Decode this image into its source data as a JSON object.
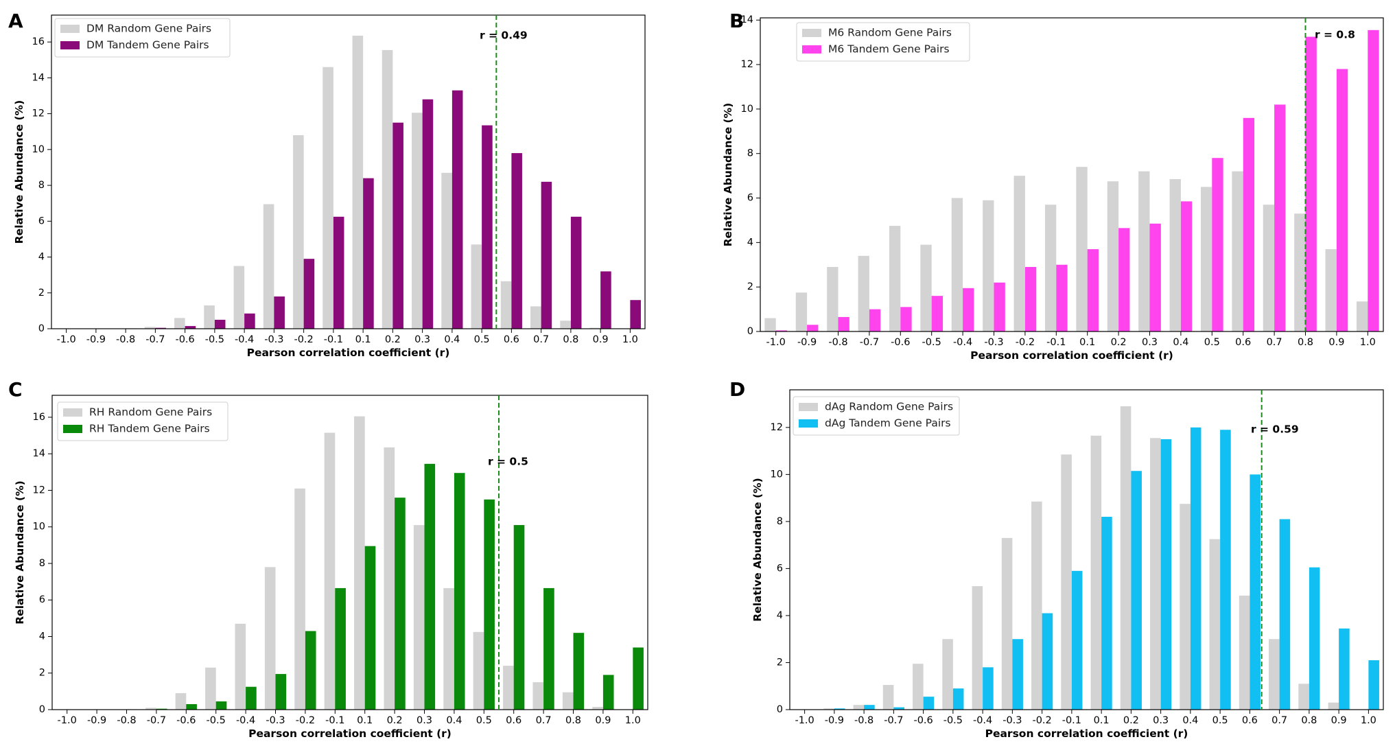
{
  "chart_data": [
    {
      "panel": "A",
      "type": "bar",
      "categories": [
        "-1.0",
        "-0.9",
        "-0.8",
        "-0.7",
        "-0.6",
        "-0.5",
        "-0.4",
        "-0.3",
        "-0.2",
        "-0.1",
        "0.1",
        "0.2",
        "0.3",
        "0.4",
        "0.5",
        "0.6",
        "0.7",
        "0.8",
        "0.9",
        "1.0"
      ],
      "series": [
        {
          "name": "DM Random Gene Pairs",
          "color": "#d3d3d3",
          "values": [
            0,
            0,
            0.02,
            0.1,
            0.6,
            1.3,
            3.5,
            6.95,
            10.8,
            14.6,
            16.35,
            15.55,
            12.05,
            8.7,
            4.7,
            2.65,
            1.25,
            0.45,
            0.05,
            0
          ]
        },
        {
          "name": "DM Tandem Gene Pairs",
          "color": "#8b0a7a",
          "values": [
            0,
            0,
            0.02,
            0.05,
            0.15,
            0.5,
            0.85,
            1.8,
            3.9,
            6.25,
            8.4,
            11.5,
            12.8,
            13.3,
            11.35,
            9.8,
            8.2,
            6.25,
            3.2,
            1.6
          ]
        }
      ],
      "threshold": {
        "value": 0.49,
        "label": "r = 0.49",
        "position": 14.49
      },
      "xlabel": "Pearson correlation coefficient (r)",
      "ylabel": "Relative Abundance (%)",
      "ylim": [
        0,
        17.5
      ],
      "yticks": [
        0,
        2,
        4,
        6,
        8,
        10,
        12,
        14,
        16
      ],
      "legend": "top-left"
    },
    {
      "panel": "B",
      "type": "bar",
      "categories": [
        "-1.0",
        "-0.9",
        "-0.8",
        "-0.7",
        "-0.6",
        "-0.5",
        "-0.4",
        "-0.3",
        "-0.2",
        "-0.1",
        "0.1",
        "0.2",
        "0.3",
        "0.4",
        "0.5",
        "0.6",
        "0.7",
        "0.8",
        "0.9",
        "1.0"
      ],
      "series": [
        {
          "name": "M6 Random Gene Pairs",
          "color": "#d3d3d3",
          "values": [
            0.6,
            1.75,
            2.9,
            3.4,
            4.75,
            3.9,
            6.0,
            5.9,
            7.0,
            5.7,
            7.4,
            6.75,
            7.2,
            6.85,
            6.5,
            7.2,
            5.7,
            5.3,
            3.7,
            1.35
          ]
        },
        {
          "name": "M6 Tandem Gene Pairs",
          "color": "#ff44ee",
          "values": [
            0.05,
            0.3,
            0.65,
            1.0,
            1.1,
            1.6,
            1.95,
            2.2,
            2.9,
            3.0,
            3.7,
            4.65,
            4.85,
            5.85,
            7.8,
            9.6,
            10.2,
            13.25,
            11.8,
            13.55
          ]
        }
      ],
      "threshold": {
        "value": 0.8,
        "label": "r = 0.8",
        "position": 17.0
      },
      "xlabel": "Pearson correlation coefficient (r)",
      "ylabel": "Relative Abundance (%)",
      "ylim": [
        0,
        14.1
      ],
      "yticks": [
        0,
        2,
        4,
        6,
        8,
        10,
        12,
        14
      ],
      "legend": "top-left"
    },
    {
      "panel": "C",
      "type": "bar",
      "categories": [
        "-1.0",
        "-0.9",
        "-0.8",
        "-0.7",
        "-0.6",
        "-0.5",
        "-0.4",
        "-0.3",
        "-0.2",
        "-0.1",
        "0.1",
        "0.2",
        "0.3",
        "0.4",
        "0.5",
        "0.6",
        "0.7",
        "0.8",
        "0.9",
        "1.0"
      ],
      "series": [
        {
          "name": "RH Random Gene Pairs",
          "color": "#d3d3d3",
          "values": [
            0,
            0,
            0.02,
            0.1,
            0.9,
            2.3,
            4.7,
            7.8,
            12.1,
            15.15,
            16.05,
            14.35,
            10.1,
            6.65,
            4.25,
            2.4,
            1.5,
            0.95,
            0.15,
            0
          ]
        },
        {
          "name": "RH Tandem Gene Pairs",
          "color": "#0a8a0a",
          "values": [
            0,
            0,
            0.02,
            0.05,
            0.3,
            0.45,
            1.25,
            1.95,
            4.3,
            6.65,
            8.95,
            11.6,
            13.45,
            12.95,
            11.5,
            10.1,
            6.65,
            4.2,
            1.9,
            3.4
          ]
        }
      ],
      "threshold": {
        "value": 0.5,
        "label": "r = 0.5",
        "position": 14.5
      },
      "xlabel": "Pearson correlation coefficient (r)",
      "ylabel": "Relative Abundance (%)",
      "ylim": [
        0,
        17.2
      ],
      "yticks": [
        0,
        2,
        4,
        6,
        8,
        10,
        12,
        14,
        16
      ],
      "legend": "top-left"
    },
    {
      "panel": "D",
      "type": "bar",
      "categories": [
        "-1.0",
        "-0.9",
        "-0.8",
        "-0.7",
        "-0.6",
        "-0.5",
        "-0.4",
        "-0.3",
        "-0.2",
        "-0.1",
        "0.1",
        "0.2",
        "0.3",
        "0.4",
        "0.5",
        "0.6",
        "0.7",
        "0.8",
        "0.9",
        "1.0"
      ],
      "series": [
        {
          "name": "dAg Random Gene Pairs",
          "color": "#d3d3d3",
          "values": [
            0,
            0.05,
            0.2,
            1.05,
            1.95,
            3.0,
            5.25,
            7.3,
            8.85,
            10.85,
            11.65,
            12.9,
            11.55,
            8.75,
            7.25,
            4.85,
            3.0,
            1.1,
            0.3,
            0
          ]
        },
        {
          "name": "dAg Tandem Gene Pairs",
          "color": "#12bff3",
          "values": [
            0,
            0.05,
            0.2,
            0.1,
            0.55,
            0.9,
            1.8,
            3.0,
            4.1,
            5.9,
            8.2,
            10.15,
            11.5,
            12.0,
            11.9,
            10.0,
            8.1,
            6.05,
            3.45,
            2.1
          ]
        }
      ],
      "threshold": {
        "value": 0.59,
        "label": "r = 0.59",
        "position": 15.4
      },
      "xlabel": "Pearson correlation coefficient (r)",
      "ylabel": "Relative Abundance (%)",
      "ylim": [
        0,
        13.6
      ],
      "yticks": [
        0,
        2,
        4,
        6,
        8,
        10,
        12
      ],
      "legend": "top-left"
    }
  ]
}
